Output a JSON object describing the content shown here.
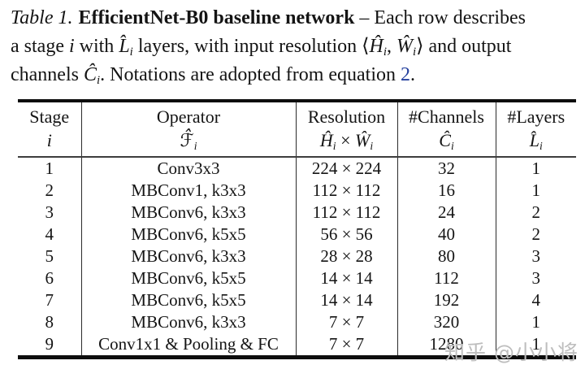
{
  "caption": {
    "label_italic": "Table 1.",
    "title_bold": "EfficientNet-B0 baseline network",
    "dash_rest": " – Each row describes",
    "l2_a": "a stage ",
    "l2_i": "i",
    "l2_b": " with ",
    "l2_L": "L̂",
    "l2_Lsub": "i",
    "l2_c": " layers, with input resolution ",
    "l2_open": "⟨",
    "l2_H": "Ĥ",
    "l2_Hsub": "i",
    "l2_comma": ", ",
    "l2_W": "Ŵ",
    "l2_Wsub": "i",
    "l2_close": "⟩",
    "l2_d": " and output",
    "l3_a": "channels ",
    "l3_C": "Ĉ",
    "l3_Csub": "i",
    "l3_b": ". Notations are adopted from equation ",
    "l3_link": "2",
    "l3_dot": "."
  },
  "table": {
    "columns": [
      {
        "label": "Stage",
        "sym": "i",
        "sub": ""
      },
      {
        "label": "Operator",
        "sym": "ℱ̂",
        "sub": "i"
      },
      {
        "label": "Resolution",
        "sym": "Ĥ",
        "sub": "i",
        "joiner": " × ",
        "sym2": "Ŵ",
        "sub2": "i"
      },
      {
        "label": "#Channels",
        "sym": "Ĉ",
        "sub": "i"
      },
      {
        "label": "#Layers",
        "sym": "L̂",
        "sub": "i"
      }
    ],
    "rows": [
      {
        "stage": "1",
        "operator": "Conv3x3",
        "resolution": "224 × 224",
        "channels": "32",
        "layers": "1"
      },
      {
        "stage": "2",
        "operator": "MBConv1, k3x3",
        "resolution": "112 × 112",
        "channels": "16",
        "layers": "1"
      },
      {
        "stage": "3",
        "operator": "MBConv6, k3x3",
        "resolution": "112 × 112",
        "channels": "24",
        "layers": "2"
      },
      {
        "stage": "4",
        "operator": "MBConv6, k5x5",
        "resolution": "56 × 56",
        "channels": "40",
        "layers": "2"
      },
      {
        "stage": "5",
        "operator": "MBConv6, k3x3",
        "resolution": "28 × 28",
        "channels": "80",
        "layers": "3"
      },
      {
        "stage": "6",
        "operator": "MBConv6, k5x5",
        "resolution": "14 × 14",
        "channels": "112",
        "layers": "3"
      },
      {
        "stage": "7",
        "operator": "MBConv6, k5x5",
        "resolution": "14 × 14",
        "channels": "192",
        "layers": "4"
      },
      {
        "stage": "8",
        "operator": "MBConv6, k3x3",
        "resolution": "7 × 7",
        "channels": "320",
        "layers": "1"
      },
      {
        "stage": "9",
        "operator": "Conv1x1 & Pooling & FC",
        "resolution": "7 × 7",
        "channels": "1280",
        "layers": "1"
      }
    ]
  },
  "watermark": {
    "text": "知乎 @小小将"
  },
  "colors": {
    "link_blue": "#24409e",
    "rule_black": "#0d0d0d",
    "text": "#141414",
    "watermark_gray": "#bdbdbd"
  }
}
